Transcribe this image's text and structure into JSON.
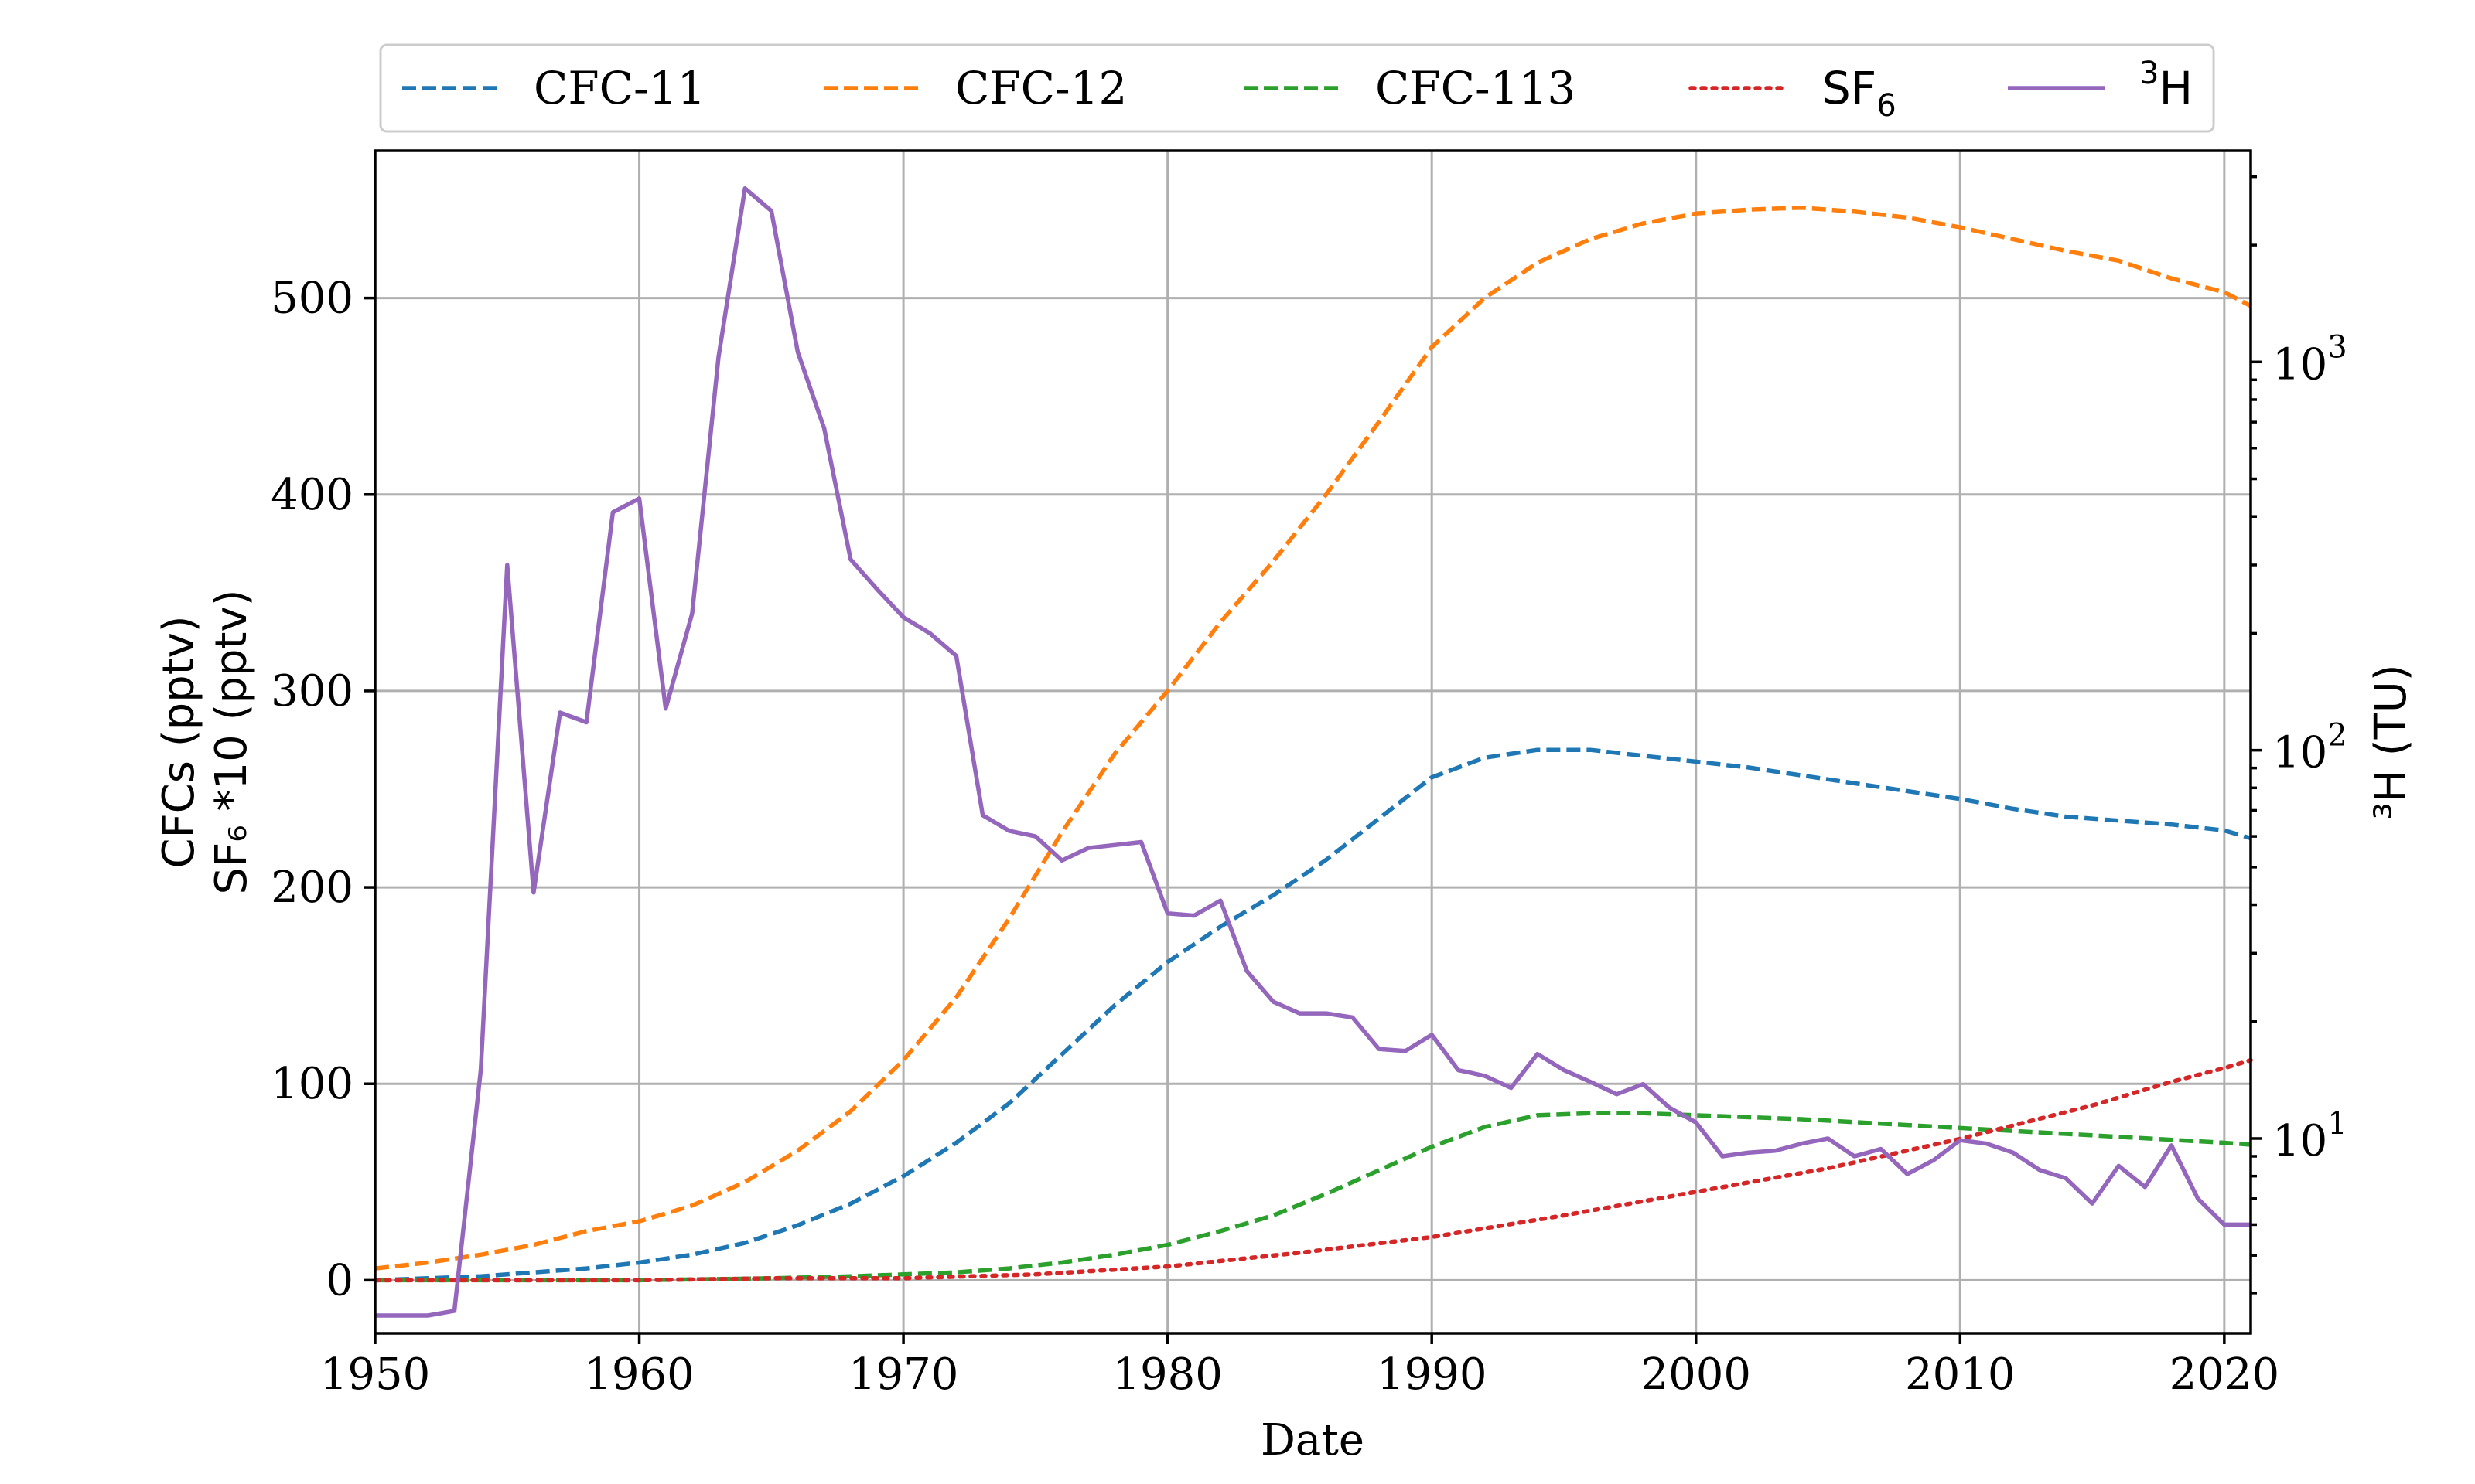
{
  "chart_data": {
    "type": "line",
    "xlabel": "Date",
    "ylabel_left": [
      "CFCs (pptv)",
      "SF₆ *10 (pptv)"
    ],
    "ylabel_right": "³H (TU)",
    "xlim": [
      1950,
      2021
    ],
    "ylim_left": [
      -27,
      575
    ],
    "ylim_right_log": [
      3.15,
      3500
    ],
    "right_scale": "log",
    "grid": true,
    "legend_position": "top",
    "x_ticks": [
      {
        "value": 1950,
        "label": "1950"
      },
      {
        "value": 1960,
        "label": "1960"
      },
      {
        "value": 1970,
        "label": "1970"
      },
      {
        "value": 1980,
        "label": "1980"
      },
      {
        "value": 1990,
        "label": "1990"
      },
      {
        "value": 2000,
        "label": "2000"
      },
      {
        "value": 2010,
        "label": "2010"
      },
      {
        "value": 2020,
        "label": "2020"
      }
    ],
    "y_ticks_left": [
      {
        "value": 0,
        "label": "0"
      },
      {
        "value": 100,
        "label": "100"
      },
      {
        "value": 200,
        "label": "200"
      },
      {
        "value": 300,
        "label": "300"
      },
      {
        "value": 400,
        "label": "400"
      },
      {
        "value": 500,
        "label": "500"
      }
    ],
    "y_ticks_right": [
      {
        "value": 10,
        "base": "10",
        "exp": "1"
      },
      {
        "value": 100,
        "base": "10",
        "exp": "2"
      },
      {
        "value": 1000,
        "base": "10",
        "exp": "3"
      }
    ],
    "series": [
      {
        "name": "CFC-11",
        "legend_main": "CFC-11",
        "legend_sub": "",
        "legend_sup": "",
        "axis": "left",
        "color": "#1f77b4",
        "style": "dashed",
        "x": [
          1950,
          1952,
          1954,
          1956,
          1958,
          1960,
          1962,
          1964,
          1966,
          1968,
          1970,
          1972,
          1974,
          1976,
          1978,
          1980,
          1982,
          1984,
          1986,
          1988,
          1990,
          1992,
          1994,
          1996,
          1998,
          2000,
          2002,
          2004,
          2006,
          2008,
          2010,
          2012,
          2014,
          2016,
          2018,
          2020,
          2021
        ],
        "y": [
          0,
          1,
          2,
          4,
          6,
          9,
          13,
          19,
          28,
          39,
          53,
          70,
          90,
          115,
          140,
          162,
          180,
          196,
          214,
          235,
          256,
          266,
          270,
          270,
          267,
          264,
          261,
          257,
          253,
          249,
          245,
          240,
          236,
          234,
          232,
          229,
          225
        ]
      },
      {
        "name": "CFC-12",
        "legend_main": "CFC-12",
        "legend_sub": "",
        "legend_sup": "",
        "axis": "left",
        "color": "#ff7f0e",
        "style": "dashed",
        "x": [
          1950,
          1952,
          1954,
          1956,
          1958,
          1960,
          1962,
          1964,
          1966,
          1968,
          1970,
          1972,
          1974,
          1976,
          1978,
          1980,
          1982,
          1984,
          1986,
          1988,
          1990,
          1992,
          1994,
          1996,
          1998,
          2000,
          2002,
          2004,
          2006,
          2008,
          2010,
          2012,
          2014,
          2016,
          2018,
          2020,
          2021
        ],
        "y": [
          6,
          9,
          13,
          18,
          25,
          30,
          38,
          50,
          66,
          86,
          112,
          144,
          184,
          228,
          268,
          300,
          335,
          366,
          400,
          437,
          475,
          500,
          518,
          530,
          538,
          543,
          545,
          546,
          544,
          541,
          536,
          530,
          524,
          519,
          510,
          503,
          496
        ]
      },
      {
        "name": "CFC-113",
        "legend_main": "CFC-113",
        "legend_sub": "",
        "legend_sup": "",
        "axis": "left",
        "color": "#2ca02c",
        "style": "dashed",
        "x": [
          1950,
          1955,
          1960,
          1965,
          1968,
          1970,
          1972,
          1974,
          1976,
          1978,
          1980,
          1982,
          1984,
          1986,
          1988,
          1990,
          1992,
          1994,
          1996,
          1998,
          2000,
          2004,
          2008,
          2012,
          2016,
          2020,
          2021
        ],
        "y": [
          0,
          0,
          0,
          1,
          2,
          3,
          4,
          6,
          9,
          13,
          18,
          25,
          33,
          44,
          56,
          68,
          78,
          84,
          85,
          85,
          84,
          82,
          79,
          76,
          73,
          70,
          69
        ]
      },
      {
        "name": "SF6",
        "legend_main": "SF",
        "legend_sub": "6",
        "legend_sup": "",
        "axis": "left",
        "color": "#d62728",
        "style": "dotted",
        "x": [
          1950,
          1960,
          1965,
          1970,
          1975,
          1980,
          1985,
          1990,
          1995,
          2000,
          2005,
          2010,
          2015,
          2018,
          2020,
          2021
        ],
        "y": [
          0,
          0,
          1,
          1,
          3,
          7,
          14,
          22,
          33,
          45,
          57,
          72,
          89,
          101,
          108,
          112
        ]
      },
      {
        "name": "3H",
        "legend_main": "H",
        "legend_sub": "",
        "legend_sup": "3",
        "axis": "right",
        "color": "#9467bd",
        "style": "solid",
        "x": [
          1950,
          1951,
          1952,
          1953,
          1954,
          1955,
          1956,
          1957,
          1958,
          1959,
          1960,
          1961,
          1962,
          1963,
          1964,
          1965,
          1966,
          1967,
          1968,
          1969,
          1970,
          1971,
          1972,
          1973,
          1974,
          1975,
          1976,
          1977,
          1978,
          1979,
          1980,
          1981,
          1982,
          1983,
          1984,
          1985,
          1986,
          1987,
          1988,
          1989,
          1990,
          1991,
          1992,
          1993,
          1994,
          1995,
          1996,
          1997,
          1998,
          1999,
          2000,
          2001,
          2002,
          2003,
          2004,
          2005,
          2006,
          2007,
          2008,
          2009,
          2010,
          2011,
          2012,
          2013,
          2014,
          2015,
          2016,
          2017,
          2018,
          2019,
          2020,
          2021
        ],
        "y": [
          3.5,
          3.5,
          3.5,
          3.6,
          15,
          300,
          43,
          125,
          118,
          410,
          445,
          128,
          225,
          1030,
          2800,
          2450,
          1060,
          675,
          310,
          260,
          220,
          200,
          175,
          68,
          62,
          60,
          52,
          56,
          57,
          58,
          38,
          37.5,
          41,
          27,
          22.5,
          21,
          21,
          20.5,
          17,
          16.8,
          18.5,
          15,
          14.5,
          13.5,
          16.5,
          15,
          14,
          13,
          13.8,
          12,
          11,
          9,
          9.2,
          9.3,
          9.7,
          10,
          9,
          9.4,
          8.1,
          8.8,
          9.9,
          9.7,
          9.2,
          8.3,
          7.9,
          6.8,
          8.5,
          7.5,
          9.6,
          7,
          6,
          6
        ]
      }
    ]
  }
}
